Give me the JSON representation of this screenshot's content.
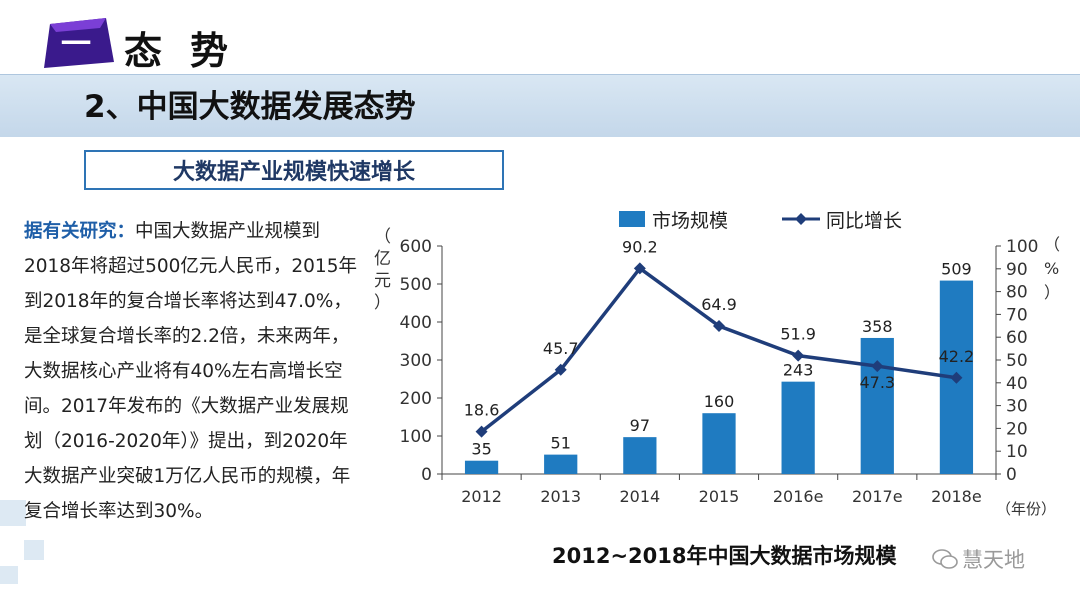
{
  "header": {
    "section_number": "一",
    "section_title": "态势"
  },
  "slide_title": "2、中国大数据发展态势",
  "subtitle": "大数据产业规模快速增长",
  "body": {
    "lead": "据有关研究：",
    "text": "中国大数据产业规模到2018年将超过500亿元人民币，2015年到2018年的复合增长率将达到47.0%，是全球复合增长率的2.2倍，未来两年，大数据核心产业将有40%左右高增长空间。2017年发布的《大数据产业发展规划（2016-2020年）》提出，到2020年大数据产业突破1万亿人民币的规模，年复合增长率达到30%。"
  },
  "colors": {
    "bar": "#1f7bc1",
    "line": "#1f3d7a",
    "accent": "#2e74b5"
  },
  "chart_data": {
    "type": "bar",
    "title": "2012~2018年中国大数据市场规模",
    "categories": [
      "2012",
      "2013",
      "2014",
      "2015",
      "2016e",
      "2017e",
      "2018e"
    ],
    "series": [
      {
        "name": "市场规模",
        "type": "bar",
        "axis": "left",
        "values": [
          35,
          51,
          97,
          160,
          243,
          358,
          509
        ]
      },
      {
        "name": "同比增长",
        "type": "line",
        "axis": "right",
        "values": [
          18.6,
          45.7,
          90.2,
          64.9,
          51.9,
          47.3,
          42.2
        ]
      }
    ],
    "ylabel": "（亿元）",
    "y2label": "（%）",
    "xlabel": "（年份）",
    "ylim": [
      0,
      600
    ],
    "y2lim": [
      0,
      100
    ],
    "yticks": [
      "0",
      "100",
      "200",
      "300",
      "400",
      "500",
      "600"
    ],
    "y2ticks": [
      "0",
      "10",
      "20",
      "30",
      "40",
      "50",
      "60",
      "70",
      "80",
      "90",
      "100"
    ]
  },
  "watermark": "慧天地"
}
